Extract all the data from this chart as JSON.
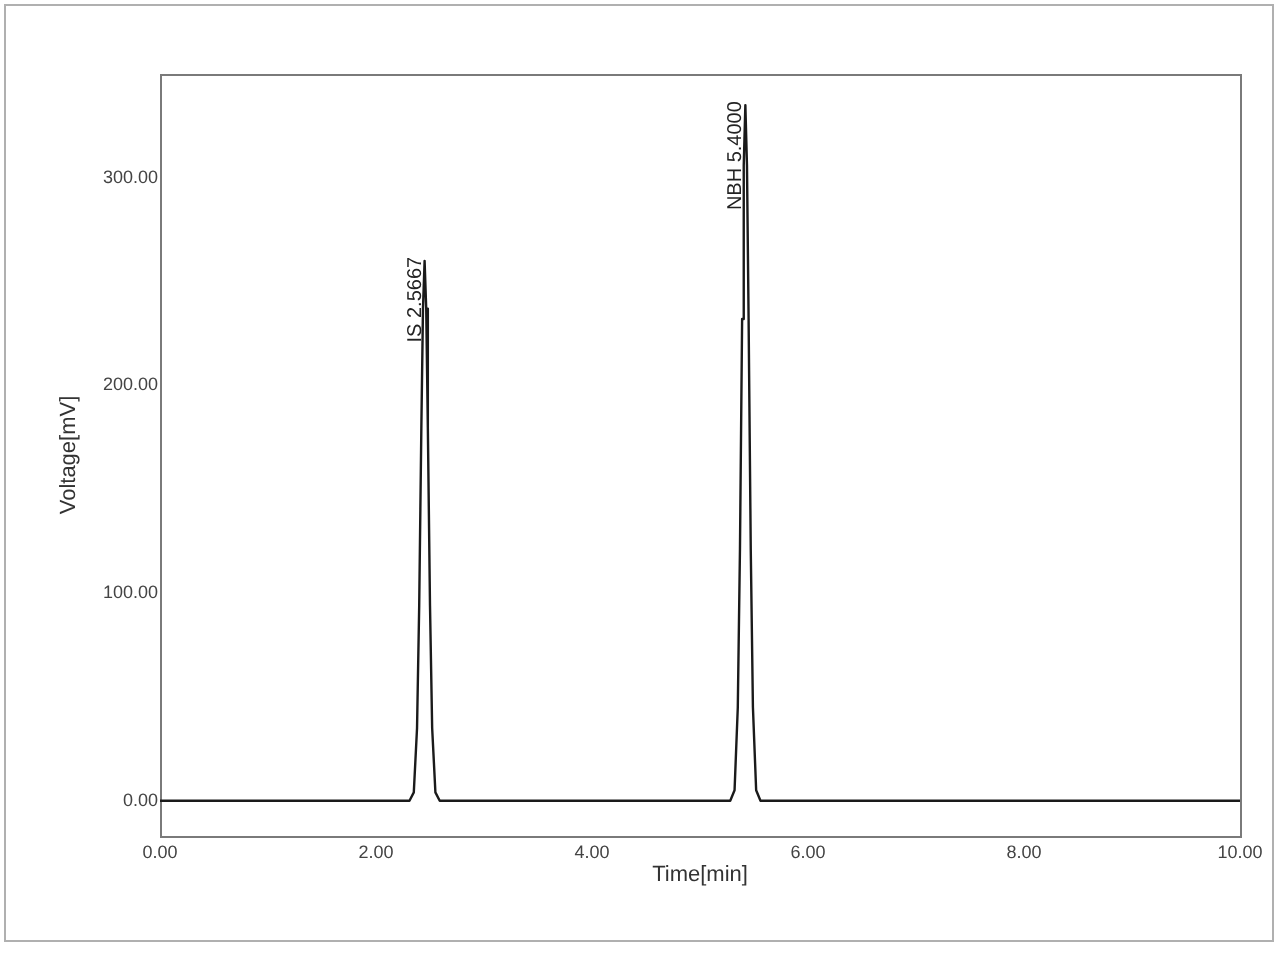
{
  "chart_data": {
    "type": "line",
    "xlabel": "Time[min]",
    "ylabel": "Voltage[mV]",
    "x": [
      0,
      0.5,
      1.0,
      1.5,
      2.0,
      2.31,
      2.35,
      2.38,
      2.4,
      2.42,
      2.435,
      2.45,
      2.465,
      2.48,
      2.5,
      2.52,
      2.55,
      2.59,
      3.0,
      3.5,
      4.0,
      4.5,
      5.0,
      5.28,
      5.32,
      5.35,
      5.37,
      5.39,
      5.405,
      5.42,
      5.435,
      5.45,
      5.47,
      5.49,
      5.52,
      5.56,
      6.0,
      7.0,
      8.0,
      9.0,
      10.0
    ],
    "series": [
      {
        "color": "#1a1a1a",
        "values": [
          0,
          0,
          0,
          0,
          0,
          0,
          4,
          35,
          94,
          180,
          237,
          260,
          237,
          180,
          94,
          35,
          4,
          0,
          0,
          0,
          0,
          0,
          0,
          0,
          5,
          45,
          121,
          232,
          306,
          335,
          306,
          232,
          121,
          45,
          5,
          0,
          0,
          0,
          0,
          0,
          0
        ]
      }
    ],
    "xlim": [
      0,
      10
    ],
    "ylim": [
      -17,
      350
    ],
    "xticks": [
      {
        "value": 0,
        "label": "0.00"
      },
      {
        "value": 2,
        "label": "2.00"
      },
      {
        "value": 4,
        "label": "4.00"
      },
      {
        "value": 6,
        "label": "6.00"
      },
      {
        "value": 8,
        "label": "8.00"
      },
      {
        "value": 10,
        "label": "10.00"
      }
    ],
    "yticks": [
      {
        "value": 0,
        "label": "0.00"
      },
      {
        "value": 100,
        "label": "100.00"
      },
      {
        "value": 200,
        "label": "200.00"
      },
      {
        "value": 300,
        "label": "300.00"
      }
    ],
    "annotations": [
      {
        "text": "IS 2.5667",
        "x": 2.45,
        "y": 260
      },
      {
        "text": "NBH 5.4000",
        "x": 5.42,
        "y": 335
      }
    ],
    "grid": false,
    "legend": false,
    "marker": "none",
    "line_style": "solid"
  }
}
